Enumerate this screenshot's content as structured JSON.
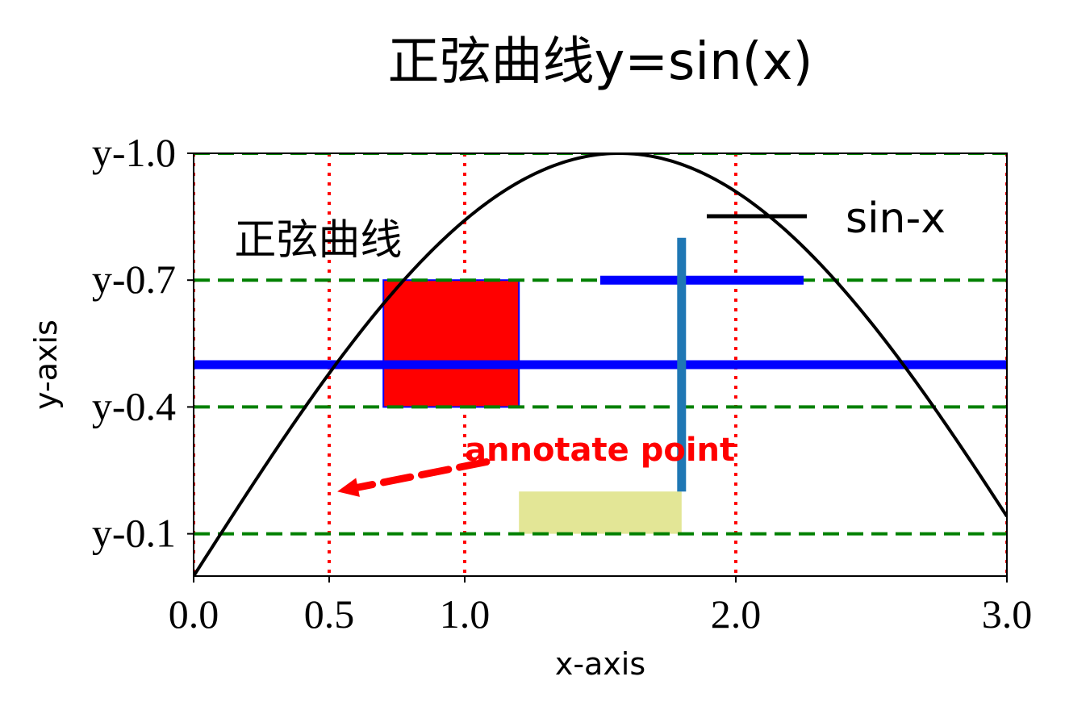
{
  "chart_data": {
    "type": "line",
    "title": "正弦曲线y=sin(x)",
    "xlabel": "x-axis",
    "ylabel": "y-axis",
    "xlim": [
      0.0,
      3.0
    ],
    "ylim": [
      0.0,
      1.0
    ],
    "xticks": [
      0.0,
      0.5,
      1.0,
      2.0,
      3.0
    ],
    "xtick_labels": [
      "0.0",
      "0.5",
      "1.0",
      "2.0",
      "3.0"
    ],
    "yticks": [
      0.1,
      0.4,
      0.7,
      1.0
    ],
    "ytick_labels": [
      "y-0.1",
      "y-0.4",
      "y-0.7",
      "y-1.0"
    ],
    "series": [
      {
        "name": "sin-x",
        "function": "sin(x)",
        "color": "#000000",
        "x_range": [
          0.0,
          3.0
        ]
      }
    ],
    "vertical_gridlines": {
      "x": [
        0.0,
        0.5,
        1.0,
        2.0,
        3.0
      ],
      "color": "#ff0000",
      "style": "dotted"
    },
    "horizontal_gridlines": {
      "y": [
        0.1,
        0.4,
        0.7,
        1.0
      ],
      "color": "#008000",
      "style": "dashed"
    },
    "horizontal_line_full": {
      "y": 0.5,
      "color": "#0000ff"
    },
    "horizontal_line_partial": {
      "y": 0.7,
      "xmin": 1.5,
      "xmax": 2.25,
      "color": "#0000ff"
    },
    "vertical_line_partial": {
      "x": 1.8,
      "ymin": 0.2,
      "ymax": 0.8,
      "color": "#1f77b4"
    },
    "rect_red": {
      "x0": 0.7,
      "x1": 1.2,
      "y0": 0.4,
      "y1": 0.7,
      "fill": "#ff0000",
      "edge": "#0000ff"
    },
    "rect_yellow": {
      "x0": 1.2,
      "x1": 1.8,
      "y0": 0.1,
      "y1": 0.2,
      "fill": "#e3e696"
    },
    "inner_text": {
      "text": "正弦曲线",
      "x": 0.15,
      "y": 0.8
    },
    "annotation": {
      "text": "annotate point",
      "text_x": 1.0,
      "text_y": 0.3,
      "arrow_from_x": 1.08,
      "arrow_from_y": 0.27,
      "arrow_to_x": 0.53,
      "arrow_to_y": 0.2,
      "color": "#ff0000"
    },
    "legend": {
      "placement": "top-right",
      "entries": [
        "sin-x"
      ]
    }
  }
}
